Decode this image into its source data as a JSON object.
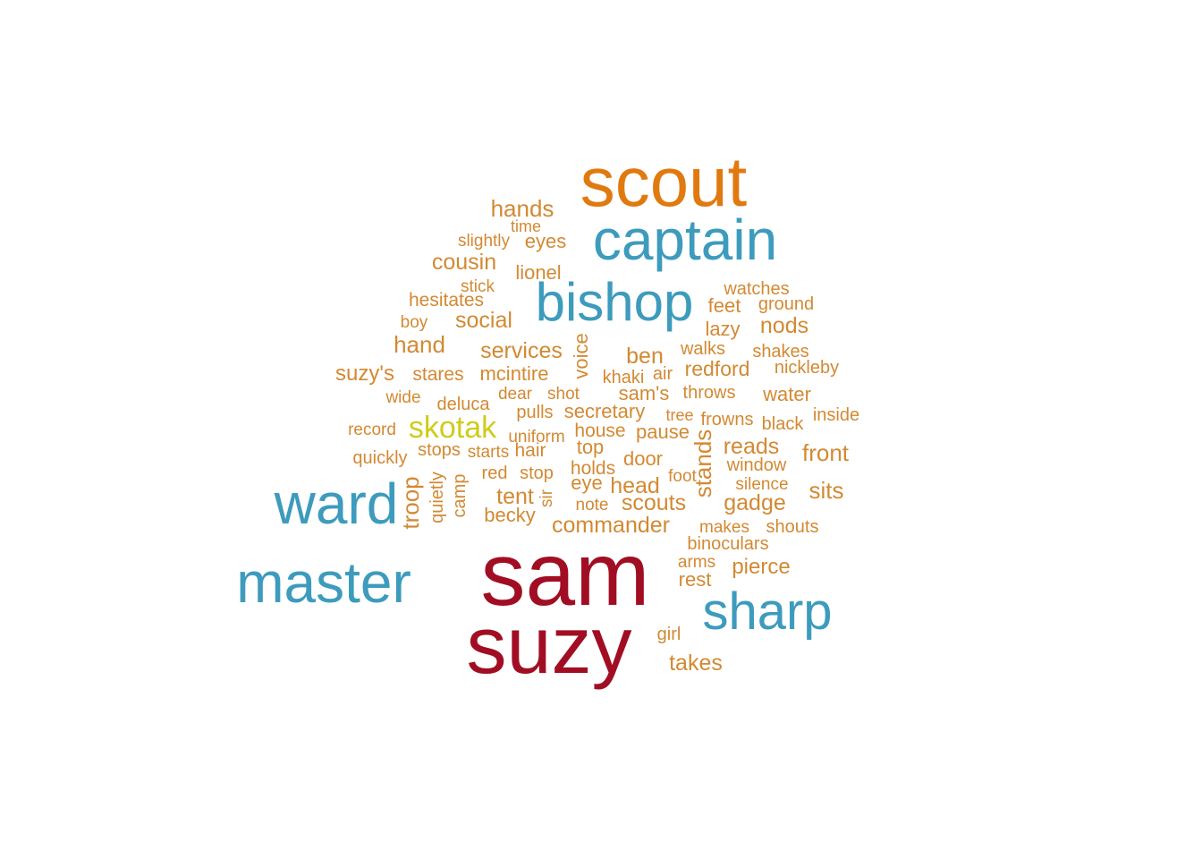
{
  "colors": {
    "dark_red": "#a10e23",
    "blue": "#3d9bbd",
    "orange": "#e07a10",
    "light_orange": "#d38932",
    "yellow": "#cfcc1c"
  },
  "words": [
    {
      "text": "sam",
      "color": "dark_red"
    },
    {
      "text": "suzy",
      "color": "dark_red"
    },
    {
      "text": "scout",
      "color": "orange"
    },
    {
      "text": "captain",
      "color": "blue"
    },
    {
      "text": "bishop",
      "color": "blue"
    },
    {
      "text": "ward",
      "color": "blue"
    },
    {
      "text": "master",
      "color": "blue"
    },
    {
      "text": "sharp",
      "color": "blue"
    },
    {
      "text": "skotak",
      "color": "yellow"
    },
    {
      "text": "hands",
      "color": "light_orange"
    },
    {
      "text": "time",
      "color": "light_orange"
    },
    {
      "text": "slightly",
      "color": "light_orange"
    },
    {
      "text": "eyes",
      "color": "light_orange"
    },
    {
      "text": "cousin",
      "color": "light_orange"
    },
    {
      "text": "lionel",
      "color": "light_orange"
    },
    {
      "text": "stick",
      "color": "light_orange"
    },
    {
      "text": "hesitates",
      "color": "light_orange"
    },
    {
      "text": "watches",
      "color": "light_orange"
    },
    {
      "text": "feet",
      "color": "light_orange"
    },
    {
      "text": "ground",
      "color": "light_orange"
    },
    {
      "text": "boy",
      "color": "light_orange"
    },
    {
      "text": "social",
      "color": "light_orange"
    },
    {
      "text": "lazy",
      "color": "light_orange"
    },
    {
      "text": "nods",
      "color": "light_orange"
    },
    {
      "text": "hand",
      "color": "light_orange"
    },
    {
      "text": "services",
      "color": "light_orange"
    },
    {
      "text": "voice",
      "color": "light_orange"
    },
    {
      "text": "ben",
      "color": "light_orange"
    },
    {
      "text": "walks",
      "color": "light_orange"
    },
    {
      "text": "shakes",
      "color": "light_orange"
    },
    {
      "text": "suzy's",
      "color": "light_orange"
    },
    {
      "text": "stares",
      "color": "light_orange"
    },
    {
      "text": "mcintire",
      "color": "light_orange"
    },
    {
      "text": "khaki",
      "color": "light_orange"
    },
    {
      "text": "air",
      "color": "light_orange"
    },
    {
      "text": "redford",
      "color": "light_orange"
    },
    {
      "text": "nickleby",
      "color": "light_orange"
    },
    {
      "text": "wide",
      "color": "light_orange"
    },
    {
      "text": "deluca",
      "color": "light_orange"
    },
    {
      "text": "dear",
      "color": "light_orange"
    },
    {
      "text": "shot",
      "color": "light_orange"
    },
    {
      "text": "sam's",
      "color": "light_orange"
    },
    {
      "text": "throws",
      "color": "light_orange"
    },
    {
      "text": "water",
      "color": "light_orange"
    },
    {
      "text": "record",
      "color": "light_orange"
    },
    {
      "text": "pulls",
      "color": "light_orange"
    },
    {
      "text": "secretary",
      "color": "light_orange"
    },
    {
      "text": "tree",
      "color": "light_orange"
    },
    {
      "text": "frowns",
      "color": "light_orange"
    },
    {
      "text": "black",
      "color": "light_orange"
    },
    {
      "text": "inside",
      "color": "light_orange"
    },
    {
      "text": "uniform",
      "color": "light_orange"
    },
    {
      "text": "house",
      "color": "light_orange"
    },
    {
      "text": "pause",
      "color": "light_orange"
    },
    {
      "text": "stops",
      "color": "light_orange"
    },
    {
      "text": "starts",
      "color": "light_orange"
    },
    {
      "text": "hair",
      "color": "light_orange"
    },
    {
      "text": "top",
      "color": "light_orange"
    },
    {
      "text": "stands",
      "color": "light_orange"
    },
    {
      "text": "reads",
      "color": "light_orange"
    },
    {
      "text": "front",
      "color": "light_orange"
    },
    {
      "text": "quickly",
      "color": "light_orange"
    },
    {
      "text": "troop",
      "color": "light_orange"
    },
    {
      "text": "red",
      "color": "light_orange"
    },
    {
      "text": "stop",
      "color": "light_orange"
    },
    {
      "text": "holds",
      "color": "light_orange"
    },
    {
      "text": "door",
      "color": "light_orange"
    },
    {
      "text": "window",
      "color": "light_orange"
    },
    {
      "text": "quietly",
      "color": "light_orange"
    },
    {
      "text": "camp",
      "color": "light_orange"
    },
    {
      "text": "foot",
      "color": "light_orange"
    },
    {
      "text": "eye",
      "color": "light_orange"
    },
    {
      "text": "head",
      "color": "light_orange"
    },
    {
      "text": "silence",
      "color": "light_orange"
    },
    {
      "text": "sits",
      "color": "light_orange"
    },
    {
      "text": "tent",
      "color": "light_orange"
    },
    {
      "text": "sir",
      "color": "light_orange"
    },
    {
      "text": "note",
      "color": "light_orange"
    },
    {
      "text": "scouts",
      "color": "light_orange"
    },
    {
      "text": "gadge",
      "color": "light_orange"
    },
    {
      "text": "becky",
      "color": "light_orange"
    },
    {
      "text": "commander",
      "color": "light_orange"
    },
    {
      "text": "makes",
      "color": "light_orange"
    },
    {
      "text": "shouts",
      "color": "light_orange"
    },
    {
      "text": "binoculars",
      "color": "light_orange"
    },
    {
      "text": "arms",
      "color": "light_orange"
    },
    {
      "text": "pierce",
      "color": "light_orange"
    },
    {
      "text": "rest",
      "color": "light_orange"
    },
    {
      "text": "girl",
      "color": "light_orange"
    },
    {
      "text": "takes",
      "color": "light_orange"
    }
  ]
}
